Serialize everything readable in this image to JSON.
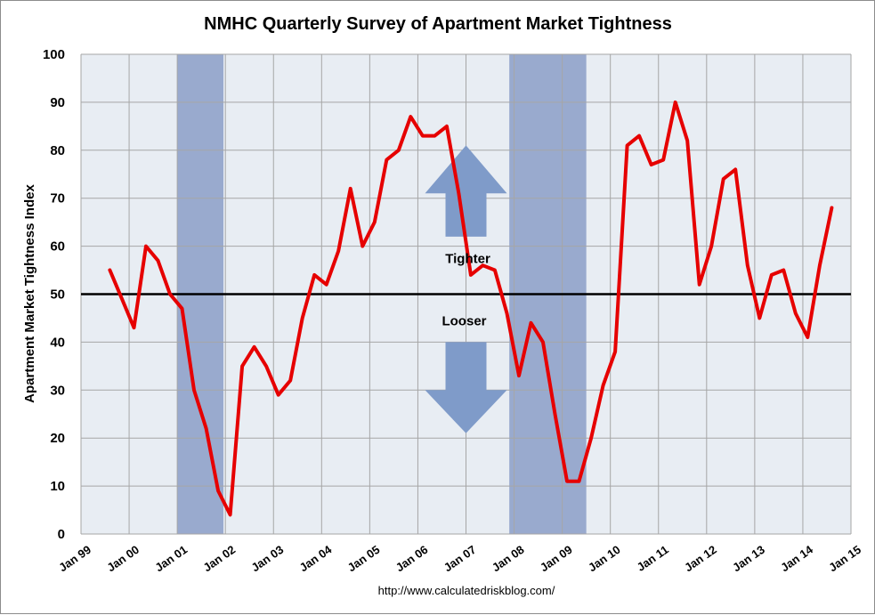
{
  "chart_data": {
    "type": "line",
    "title": "NMHC Quarterly Survey of Apartment Market Tightness",
    "xlabel": "",
    "ylabel": "Apartment Market Tightness Index",
    "ylim": [
      0,
      100
    ],
    "yticks": [
      0,
      10,
      20,
      30,
      40,
      50,
      60,
      70,
      80,
      90,
      100
    ],
    "xlim": [
      1999,
      2015
    ],
    "xticks": [
      {
        "year": 1999,
        "label": "Jan 99"
      },
      {
        "year": 2000,
        "label": "Jan 00"
      },
      {
        "year": 2001,
        "label": "Jan 01"
      },
      {
        "year": 2002,
        "label": "Jan 02"
      },
      {
        "year": 2003,
        "label": "Jan 03"
      },
      {
        "year": 2004,
        "label": "Jan 04"
      },
      {
        "year": 2005,
        "label": "Jan 05"
      },
      {
        "year": 2006,
        "label": "Jan 06"
      },
      {
        "year": 2007,
        "label": "Jan 07"
      },
      {
        "year": 2008,
        "label": "Jan 08"
      },
      {
        "year": 2009,
        "label": "Jan 09"
      },
      {
        "year": 2010,
        "label": "Jan 10"
      },
      {
        "year": 2011,
        "label": "Jan 11"
      },
      {
        "year": 2012,
        "label": "Jan 12"
      },
      {
        "year": 2013,
        "label": "Jan 13"
      },
      {
        "year": 2014,
        "label": "Jan 14"
      },
      {
        "year": 2015,
        "label": "Jan 15"
      }
    ],
    "grid": true,
    "reference_line": {
      "y": 50
    },
    "recessions": [
      {
        "start": 2001.0,
        "end": 2001.96
      },
      {
        "start": 2007.9,
        "end": 2009.5
      }
    ],
    "series": [
      {
        "name": "Apartment Market Tightness Index",
        "color": "#e60000",
        "x": [
          1999.6,
          1999.85,
          2000.1,
          2000.35,
          2000.6,
          2000.85,
          2001.1,
          2001.35,
          2001.6,
          2001.85,
          2002.1,
          2002.35,
          2002.6,
          2002.85,
          2003.1,
          2003.35,
          2003.6,
          2003.85,
          2004.1,
          2004.35,
          2004.6,
          2004.85,
          2005.1,
          2005.35,
          2005.6,
          2005.85,
          2006.1,
          2006.35,
          2006.6,
          2006.85,
          2007.1,
          2007.35,
          2007.6,
          2007.85,
          2008.1,
          2008.35,
          2008.6,
          2008.85,
          2009.1,
          2009.35,
          2009.6,
          2009.85,
          2010.1,
          2010.35,
          2010.6,
          2010.85,
          2011.1,
          2011.35,
          2011.6,
          2011.85,
          2012.1,
          2012.35,
          2012.6,
          2012.85,
          2013.1,
          2013.35,
          2013.6,
          2013.85,
          2014.1,
          2014.35,
          2014.6
        ],
        "values": [
          55,
          49,
          43,
          60,
          57,
          50,
          47,
          30,
          22,
          9,
          4,
          35,
          39,
          35,
          29,
          32,
          45,
          54,
          52,
          59,
          72,
          60,
          65,
          78,
          80,
          87,
          83,
          83,
          85,
          71,
          54,
          56,
          55,
          46,
          33,
          44,
          40,
          25,
          11,
          11,
          20,
          31,
          38,
          81,
          83,
          77,
          78,
          90,
          82,
          52,
          60,
          74,
          76,
          56,
          45,
          54,
          55,
          46,
          41,
          56,
          68
        ]
      }
    ],
    "annotations": [
      {
        "text": "Tighter",
        "arrow": "up"
      },
      {
        "text": "Looser",
        "arrow": "down"
      }
    ],
    "source": "http://www.calculatedriskblog.com/"
  },
  "colors": {
    "plot_bg": "#e8edf3",
    "grid": "#a6a6a6",
    "recession": "#99aace",
    "arrow": "#7f9bc9",
    "line": "#e60000",
    "reference": "#000000"
  }
}
